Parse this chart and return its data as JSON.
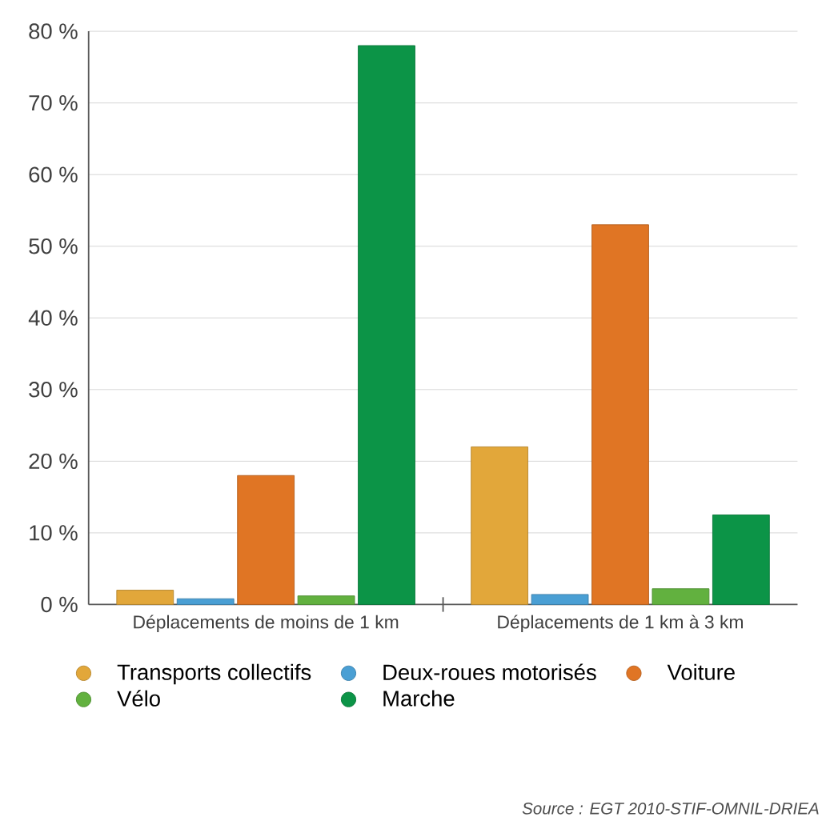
{
  "chart_data": {
    "type": "bar",
    "categories": [
      "Déplacements de moins de 1 km",
      "Déplacements de 1 km à 3 km"
    ],
    "series": [
      {
        "name": "Transports collectifs",
        "color": "#e2a73a",
        "values": [
          2.0,
          22
        ]
      },
      {
        "name": "Deux-roues motorisés",
        "color": "#4a9fd4",
        "values": [
          0.8,
          1.4
        ]
      },
      {
        "name": "Voiture",
        "color": "#e07524",
        "values": [
          18,
          53
        ]
      },
      {
        "name": "Vélo",
        "color": "#62b13f",
        "values": [
          1.2,
          2.2
        ]
      },
      {
        "name": "Marche",
        "color": "#0c9447",
        "values": [
          78,
          12.5
        ]
      }
    ],
    "ylim": [
      0,
      80
    ],
    "yticks": [
      {
        "value": 0,
        "label": "0 %"
      },
      {
        "value": 10,
        "label": "10 %"
      },
      {
        "value": 20,
        "label": "20 %"
      },
      {
        "value": 30,
        "label": "30 %"
      },
      {
        "value": 40,
        "label": "40 %"
      },
      {
        "value": 50,
        "label": "50 %"
      },
      {
        "value": 60,
        "label": "60 %"
      },
      {
        "value": 70,
        "label": "70 %"
      },
      {
        "value": 80,
        "label": "80 %"
      }
    ],
    "grid": "y",
    "legend": "bottom",
    "annotations": [
      "*Source : EGT 2010-STIF-OMNIL-DRIEA*"
    ]
  }
}
